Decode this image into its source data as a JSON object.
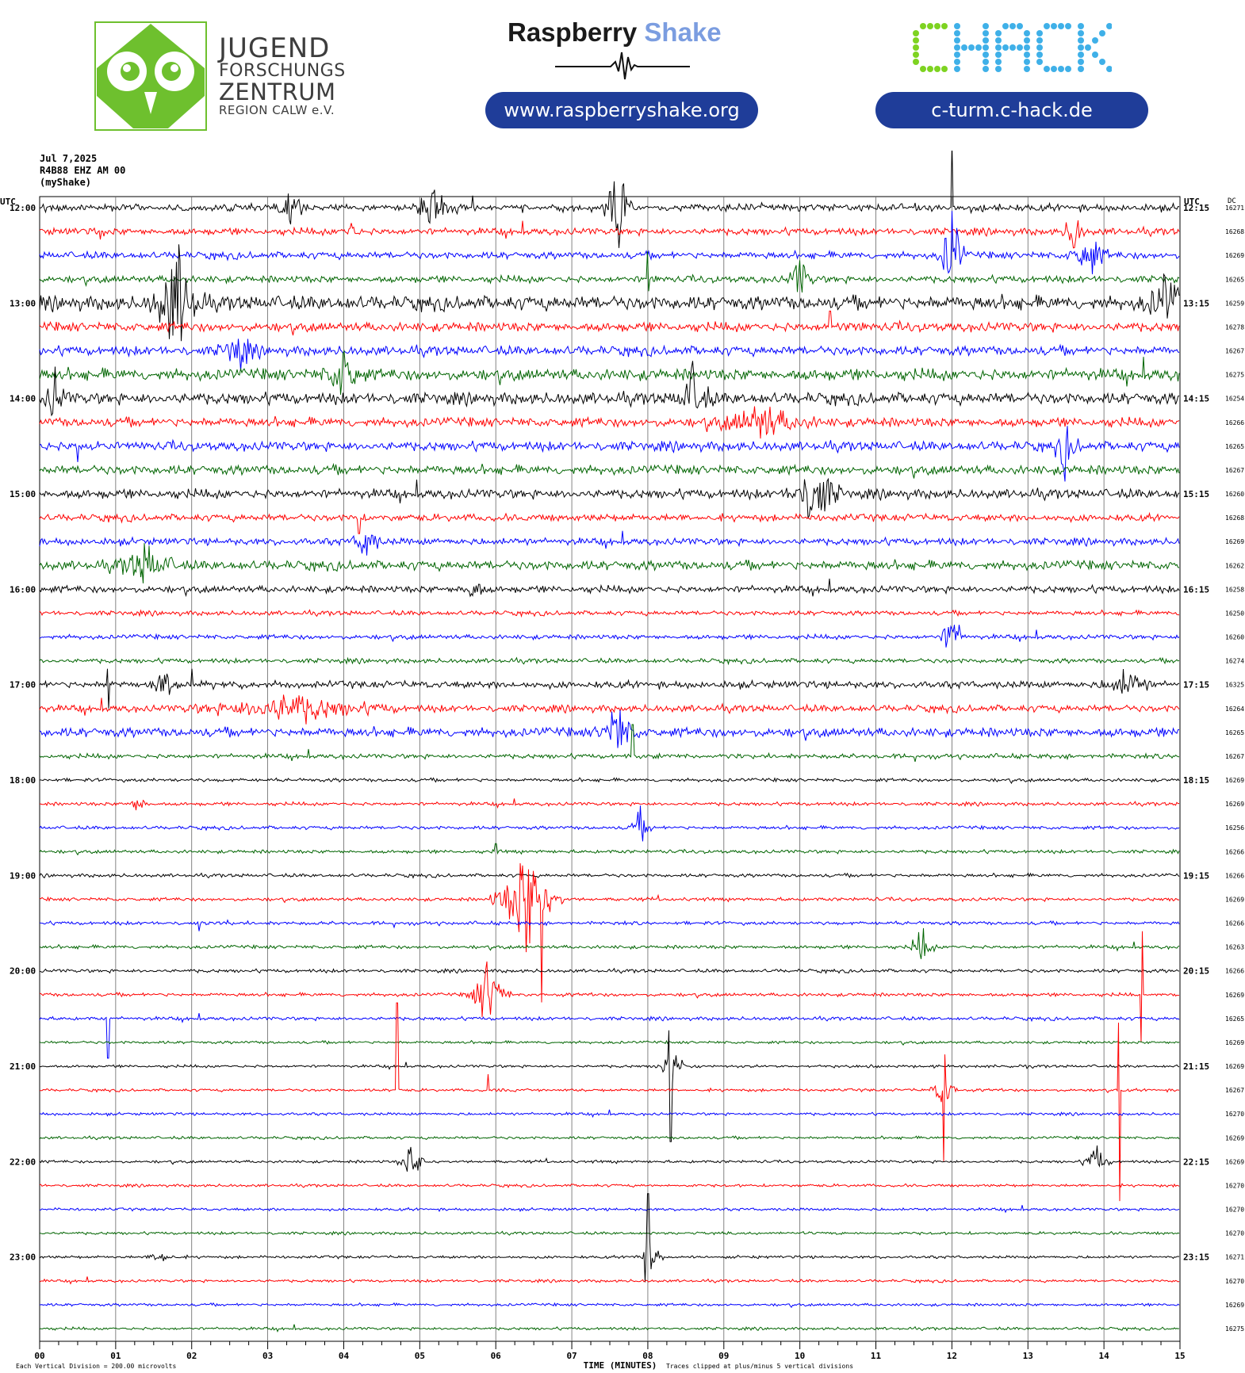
{
  "header": {
    "org_lines": [
      "JUGEND",
      "FORSCHUNGS",
      "ZENTRUM",
      "REGION CALW e.V."
    ],
    "rs_brand_a": "Raspberry",
    "rs_brand_b": "Shake",
    "rs_url": "www.raspberryshake.org",
    "chack_logo_text": "CHACK",
    "chack_url": "c-turm.c-hack.de"
  },
  "colors": {
    "rs_blue": "#7b9de0",
    "pill": "#1f3d99",
    "chack_green": "#7ed321",
    "chack_blue": "#3fb0e8",
    "owl_green": "#6ec02e",
    "trace_cycle": [
      "#000000",
      "#ff0000",
      "#0000ff",
      "#006400"
    ]
  },
  "chart_data": {
    "type": "helicorder",
    "info_lines": [
      "Jul 7,2025",
      "R4B88 EHZ AM 00",
      "(myShake)"
    ],
    "left_axis_title": "UTC",
    "right_axis_title": "UTC",
    "dc_title": "DC",
    "xlabel": "TIME (MINUTES)",
    "x_ticks": [
      "00",
      "01",
      "02",
      "03",
      "04",
      "05",
      "06",
      "07",
      "08",
      "09",
      "10",
      "11",
      "12",
      "13",
      "14",
      "15"
    ],
    "left_labels": [
      "12:00",
      "13:00",
      "14:00",
      "15:00",
      "16:00",
      "17:00",
      "18:00",
      "19:00",
      "20:00",
      "21:00",
      "22:00",
      "23:00"
    ],
    "right_labels": [
      "12:15",
      "13:15",
      "14:15",
      "15:15",
      "16:15",
      "17:15",
      "18:15",
      "19:15",
      "20:15",
      "21:15",
      "22:15",
      "23:15"
    ],
    "dc_values": [
      "16271",
      "16268",
      "16269",
      "16265",
      "16259",
      "16278",
      "16267",
      "16275",
      "16254",
      "16266",
      "16265",
      "16267",
      "16260",
      "16268",
      "16269",
      "16262",
      "16258",
      "16250",
      "16260",
      "16274",
      "16325",
      "16264",
      "16265",
      "16267",
      "16269",
      "16269",
      "16256",
      "16266",
      "16266",
      "16269",
      "16266",
      "16263",
      "16266",
      "16269",
      "16265",
      "16269",
      "16269",
      "16267",
      "16270",
      "16269",
      "16269",
      "16270",
      "16270",
      "16270",
      "16271",
      "16270",
      "16269",
      "16275"
    ],
    "footer_left": "Each Vertical Division =  200.00 microvolts",
    "footer_right": "Traces clipped at plus/minus 5 vertical divisions",
    "noise_level": [
      3,
      3,
      3,
      3,
      6,
      4,
      4,
      5,
      5,
      4,
      4,
      4,
      4,
      3,
      3,
      4,
      3,
      2,
      2,
      2,
      3,
      3,
      4,
      2,
      1.5,
      1.5,
      1.5,
      1.5,
      1.5,
      1.5,
      1.5,
      1.5,
      1.5,
      1.5,
      1.5,
      1.2,
      1.2,
      1.2,
      1.2,
      1.2,
      1.2,
      1.2,
      1.2,
      1.2,
      1.2,
      1.2,
      1.2,
      1.2
    ],
    "events": [
      {
        "line": 0,
        "minute": 3.3,
        "amp": 18,
        "dur": 0.25
      },
      {
        "line": 0,
        "minute": 5.2,
        "amp": 30,
        "dur": 0.3
      },
      {
        "line": 0,
        "minute": 7.6,
        "amp": 50,
        "dur": 0.2
      },
      {
        "line": 1,
        "minute": 4.1,
        "amp": 15,
        "dur": 0.1
      },
      {
        "line": 1,
        "minute": 13.6,
        "amp": 30,
        "dur": 0.15
      },
      {
        "line": 2,
        "minute": 12.0,
        "amp": 60,
        "dur": 0.2
      },
      {
        "line": 2,
        "minute": 13.8,
        "amp": 25,
        "dur": 0.3
      },
      {
        "line": 3,
        "minute": 10.0,
        "amp": 25,
        "dur": 0.2
      },
      {
        "line": 4,
        "minute": 1.8,
        "amp": 60,
        "dur": 0.4
      },
      {
        "line": 4,
        "minute": 14.8,
        "amp": 25,
        "dur": 0.4
      },
      {
        "line": 6,
        "minute": 2.6,
        "amp": 20,
        "dur": 0.3
      },
      {
        "line": 7,
        "minute": 4.0,
        "amp": 30,
        "dur": 0.3
      },
      {
        "line": 8,
        "minute": 0.2,
        "amp": 25,
        "dur": 0.2
      },
      {
        "line": 8,
        "minute": 8.6,
        "amp": 30,
        "dur": 0.3
      },
      {
        "line": 9,
        "minute": 9.5,
        "amp": 18,
        "dur": 0.8
      },
      {
        "line": 10,
        "minute": 13.5,
        "amp": 25,
        "dur": 0.2
      },
      {
        "line": 12,
        "minute": 10.2,
        "amp": 40,
        "dur": 0.4
      },
      {
        "line": 14,
        "minute": 4.3,
        "amp": 25,
        "dur": 0.2
      },
      {
        "line": 15,
        "minute": 1.4,
        "amp": 20,
        "dur": 0.5
      },
      {
        "line": 16,
        "minute": 5.7,
        "amp": 15,
        "dur": 0.2
      },
      {
        "line": 18,
        "minute": 12.0,
        "amp": 30,
        "dur": 0.2
      },
      {
        "line": 20,
        "minute": 1.7,
        "amp": 15,
        "dur": 0.3
      },
      {
        "line": 20,
        "minute": 14.3,
        "amp": 15,
        "dur": 0.4
      },
      {
        "line": 21,
        "minute": 3.3,
        "amp": 15,
        "dur": 1.5
      },
      {
        "line": 22,
        "minute": 7.6,
        "amp": 30,
        "dur": 0.3
      },
      {
        "line": 25,
        "minute": 1.3,
        "amp": 10,
        "dur": 0.2
      },
      {
        "line": 26,
        "minute": 7.9,
        "amp": 15,
        "dur": 0.2
      },
      {
        "line": 29,
        "minute": 6.4,
        "amp": 60,
        "dur": 0.5
      },
      {
        "line": 31,
        "minute": 11.6,
        "amp": 20,
        "dur": 0.2
      },
      {
        "line": 33,
        "minute": 5.9,
        "amp": 40,
        "dur": 0.3
      },
      {
        "line": 36,
        "minute": 8.3,
        "amp": 35,
        "dur": 0.2
      },
      {
        "line": 37,
        "minute": 11.9,
        "amp": 25,
        "dur": 0.2
      },
      {
        "line": 40,
        "minute": 4.9,
        "amp": 25,
        "dur": 0.2
      },
      {
        "line": 40,
        "minute": 13.9,
        "amp": 20,
        "dur": 0.2
      },
      {
        "line": 44,
        "minute": 1.6,
        "amp": 10,
        "dur": 0.2
      },
      {
        "line": 44,
        "minute": 8.0,
        "amp": 25,
        "dur": 0.2
      }
    ],
    "spikes": [
      {
        "line": 0,
        "minute": 12.0,
        "up": 82,
        "down": 0
      },
      {
        "line": 1,
        "minute": 0.8,
        "up": 25,
        "down": 10
      },
      {
        "line": 3,
        "minute": 8.0,
        "up": 35,
        "down": 15
      },
      {
        "line": 5,
        "minute": 10.4,
        "up": 20,
        "down": 40
      },
      {
        "line": 10,
        "minute": 0.5,
        "up": 30,
        "down": 20
      },
      {
        "line": 13,
        "minute": 4.2,
        "up": 35,
        "down": 20
      },
      {
        "line": 20,
        "minute": 0.9,
        "up": 20,
        "down": 30
      },
      {
        "line": 20,
        "minute": 2.0,
        "up": 20,
        "down": 20
      },
      {
        "line": 23,
        "minute": 7.8,
        "up": 40,
        "down": 35
      },
      {
        "line": 27,
        "minute": 6.0,
        "up": 10,
        "down": 15
      },
      {
        "line": 29,
        "minute": 6.6,
        "up": 20,
        "down": 130
      },
      {
        "line": 30,
        "minute": 2.1,
        "up": 10,
        "down": 10
      },
      {
        "line": 33,
        "minute": 5.9,
        "up": 130,
        "down": 0
      },
      {
        "line": 33,
        "minute": 14.5,
        "up": 80,
        "down": 60
      },
      {
        "line": 34,
        "minute": 0.9,
        "up": 30,
        "down": 50
      },
      {
        "line": 36,
        "minute": 8.3,
        "up": 25,
        "down": 95
      },
      {
        "line": 37,
        "minute": 4.7,
        "up": 110,
        "down": 28
      },
      {
        "line": 37,
        "minute": 5.9,
        "up": 20,
        "down": 25
      },
      {
        "line": 37,
        "minute": 11.9,
        "up": 45,
        "down": 90
      },
      {
        "line": 37,
        "minute": 14.2,
        "up": 85,
        "down": 140
      },
      {
        "line": 40,
        "minute": 4.9,
        "up": 80,
        "down": 0
      },
      {
        "line": 41,
        "minute": 8.0,
        "up": 0,
        "down": 0
      },
      {
        "line": 43,
        "minute": 8.0,
        "up": 0,
        "down": 0
      },
      {
        "line": 44,
        "minute": 8.0,
        "up": 80,
        "down": 40
      }
    ]
  }
}
